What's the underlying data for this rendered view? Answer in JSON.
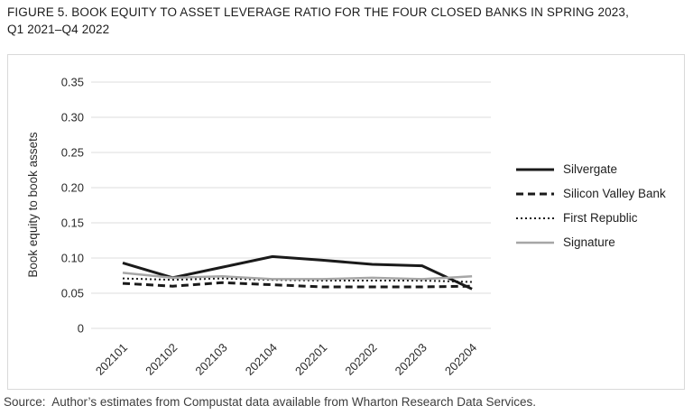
{
  "figure": {
    "title_line1": "FIGURE 5. BOOK EQUITY TO ASSET LEVERAGE RATIO FOR THE FOUR CLOSED BANKS IN SPRING 2023,",
    "title_line2": "Q1 2021–Q4 2022",
    "source": "Source:  Author’s estimates from Compustat data available from Wharton Research Data Services."
  },
  "chart_data": {
    "type": "line",
    "title": "Book equity to asset leverage ratio for the four closed banks in spring 2023, Q1 2021–Q4 2022",
    "xlabel": "",
    "ylabel": "Book equity to book assets",
    "categories": [
      "202101",
      "202102",
      "202103",
      "202104",
      "202201",
      "202202",
      "202203",
      "202204"
    ],
    "series": [
      {
        "name": "Silvergate",
        "line_style": "solid",
        "color": "#1a1a1a",
        "stroke_width": 3,
        "values": [
          0.093,
          0.072,
          0.087,
          0.102,
          0.097,
          0.091,
          0.089,
          0.056
        ]
      },
      {
        "name": "Silicon Valley Bank",
        "line_style": "dashed",
        "color": "#1a1a1a",
        "stroke_width": 3,
        "values": [
          0.064,
          0.06,
          0.065,
          0.062,
          0.059,
          0.059,
          0.059,
          0.06
        ]
      },
      {
        "name": "First Republic",
        "line_style": "dotted",
        "color": "#1a1a1a",
        "stroke_width": 2,
        "values": [
          0.071,
          0.069,
          0.071,
          0.069,
          0.068,
          0.068,
          0.068,
          0.066
        ]
      },
      {
        "name": "Signature",
        "line_style": "solid",
        "color": "#a6a6a6",
        "stroke_width": 2.5,
        "values": [
          0.079,
          0.072,
          0.074,
          0.07,
          0.07,
          0.072,
          0.07,
          0.074
        ]
      }
    ],
    "ylim": [
      0,
      0.35
    ],
    "yticks": [
      0,
      0.05,
      0.1,
      0.15,
      0.2,
      0.25,
      0.3,
      0.35
    ],
    "ytick_labels": [
      "0",
      "0.05",
      "0.10",
      "0.15",
      "0.20",
      "0.25",
      "0.30",
      "0.35"
    ],
    "grid": "horizontal",
    "gridline_color": "#e3e3e3",
    "legend_position": "right-outside-plot"
  },
  "colors": {
    "panel_border": "#d9d9d9",
    "text": "#1c1c1c",
    "gridline": "#e3e3e3"
  }
}
